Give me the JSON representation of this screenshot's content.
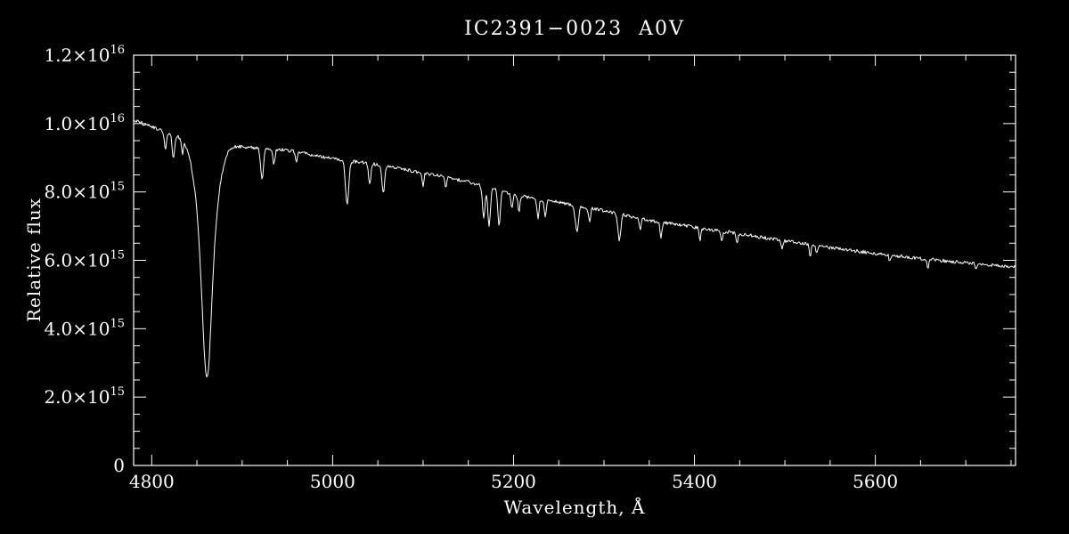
{
  "chart_data": {
    "type": "line",
    "title": "IC2391−0023  A0V",
    "xlabel": "Wavelength, Å",
    "ylabel": "Relative flux",
    "xlim": [
      4780,
      5755
    ],
    "ylim": [
      0,
      1.2e+16
    ],
    "background": "#000000",
    "line_color": "#ffffff",
    "grid": false,
    "legend": "none",
    "x_ticks": [
      {
        "value": 4800,
        "label": "4800"
      },
      {
        "value": 5000,
        "label": "5000"
      },
      {
        "value": 5200,
        "label": "5200"
      },
      {
        "value": 5400,
        "label": "5400"
      },
      {
        "value": 5600,
        "label": "5600"
      }
    ],
    "x_minor_step": 50,
    "y_ticks": [
      {
        "value": 0,
        "label": "0"
      },
      {
        "value": 2000000000000000.0,
        "label": "2.0×10^15"
      },
      {
        "value": 4000000000000000.0,
        "label": "4.0×10^15"
      },
      {
        "value": 6000000000000000.0,
        "label": "6.0×10^15"
      },
      {
        "value": 8000000000000000.0,
        "label": "8.0×10^15"
      },
      {
        "value": 1e+16,
        "label": "1.0×10^16"
      },
      {
        "value": 1.2e+16,
        "label": "1.2×10^16"
      }
    ],
    "y_minor_step": 500000000000000.0,
    "flux_unit": "1e15",
    "continuum": [
      [
        4780,
        10.1
      ],
      [
        4800,
        9.9
      ],
      [
        4830,
        9.62
      ],
      [
        4860,
        9.5
      ],
      [
        4900,
        9.32
      ],
      [
        4950,
        9.22
      ],
      [
        5000,
        8.97
      ],
      [
        5050,
        8.8
      ],
      [
        5100,
        8.55
      ],
      [
        5150,
        8.3
      ],
      [
        5200,
        7.92
      ],
      [
        5250,
        7.7
      ],
      [
        5300,
        7.45
      ],
      [
        5350,
        7.17
      ],
      [
        5400,
        6.97
      ],
      [
        5450,
        6.77
      ],
      [
        5500,
        6.57
      ],
      [
        5550,
        6.37
      ],
      [
        5600,
        6.2
      ],
      [
        5650,
        6.05
      ],
      [
        5700,
        5.93
      ],
      [
        5755,
        5.8
      ]
    ],
    "absorption_lines": [
      {
        "center": 4815,
        "depth": 0.5,
        "sigma": 1.2
      },
      {
        "center": 4824,
        "depth": 0.7,
        "sigma": 1.3
      },
      {
        "center": 4834,
        "depth": 0.4,
        "sigma": 1.0
      },
      {
        "center": 4861,
        "depth": 3.6,
        "sigma": 10.0
      },
      {
        "center": 4861,
        "depth": 3.35,
        "sigma": 4.5
      },
      {
        "center": 4922,
        "depth": 0.9,
        "sigma": 1.6
      },
      {
        "center": 4935,
        "depth": 0.45,
        "sigma": 1.2
      },
      {
        "center": 4960,
        "depth": 0.35,
        "sigma": 1.0
      },
      {
        "center": 5016,
        "depth": 1.3,
        "sigma": 1.8
      },
      {
        "center": 5041,
        "depth": 0.6,
        "sigma": 1.3
      },
      {
        "center": 5056,
        "depth": 0.8,
        "sigma": 1.4
      },
      {
        "center": 5100,
        "depth": 0.35,
        "sigma": 1.0
      },
      {
        "center": 5125,
        "depth": 0.3,
        "sigma": 1.0
      },
      {
        "center": 5167,
        "depth": 0.9,
        "sigma": 1.4
      },
      {
        "center": 5173,
        "depth": 1.1,
        "sigma": 1.4
      },
      {
        "center": 5184,
        "depth": 1.0,
        "sigma": 1.4
      },
      {
        "center": 5198,
        "depth": 0.4,
        "sigma": 1.1
      },
      {
        "center": 5206,
        "depth": 0.45,
        "sigma": 1.1
      },
      {
        "center": 5227,
        "depth": 0.55,
        "sigma": 1.2
      },
      {
        "center": 5235,
        "depth": 0.5,
        "sigma": 1.2
      },
      {
        "center": 5270,
        "depth": 0.75,
        "sigma": 1.8
      },
      {
        "center": 5284,
        "depth": 0.4,
        "sigma": 1.1
      },
      {
        "center": 5317,
        "depth": 0.8,
        "sigma": 1.5
      },
      {
        "center": 5340,
        "depth": 0.35,
        "sigma": 1.0
      },
      {
        "center": 5363,
        "depth": 0.45,
        "sigma": 1.1
      },
      {
        "center": 5406,
        "depth": 0.35,
        "sigma": 1.0
      },
      {
        "center": 5430,
        "depth": 0.3,
        "sigma": 1.0
      },
      {
        "center": 5447,
        "depth": 0.3,
        "sigma": 1.0
      },
      {
        "center": 5497,
        "depth": 0.25,
        "sigma": 0.9
      },
      {
        "center": 5528,
        "depth": 0.35,
        "sigma": 1.0
      },
      {
        "center": 5535,
        "depth": 0.25,
        "sigma": 0.9
      },
      {
        "center": 5616,
        "depth": 0.2,
        "sigma": 0.9
      },
      {
        "center": 5658,
        "depth": 0.25,
        "sigma": 0.9
      },
      {
        "center": 5711,
        "depth": 0.2,
        "sigma": 0.9
      }
    ],
    "noise_amplitude": 0.05
  }
}
